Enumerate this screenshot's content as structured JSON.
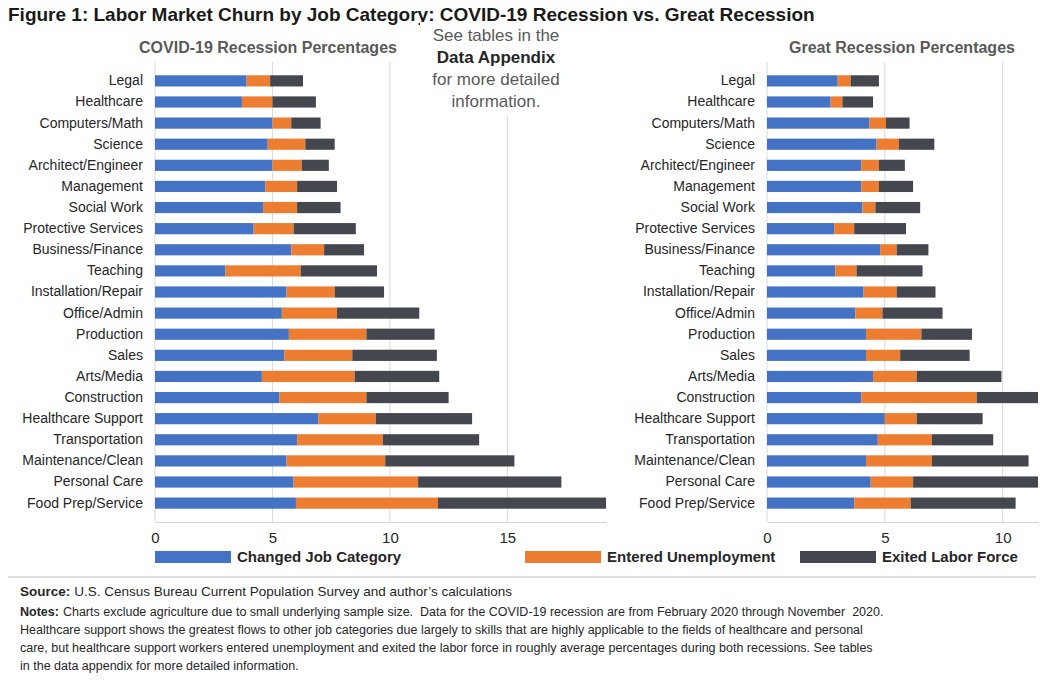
{
  "title": "Figure 1: Labor Market Churn by Job Category: COVID-19 Recession vs. Great Recession",
  "annotation": [
    "See tables in the",
    "Data Appendix",
    "for more detailed",
    "information."
  ],
  "source": {
    "label": "Source:",
    "text": "U.S. Census Bureau Current Population Survey and author’s calculations"
  },
  "notes": {
    "label": "Notes:",
    "lines": [
      "Charts exclude agriculture due to small underlying sample size.  Data for the COVID-19 recession are from February 2020 through November  2020.",
      "Healthcare support shows the greatest flows to other job categories due largely to skills that are highly applicable to the fields of healthcare and personal",
      "care, but healthcare support workers entered unemployment and exited the labor force in roughly average percentages during both recessions. See tables",
      "in the data appendix for more detailed information."
    ]
  },
  "chart_data": [
    {
      "type": "bar",
      "orientation": "horizontal",
      "stacked": true,
      "grid": true,
      "legend": "bottom",
      "title": "COVID-19 Recession Percentages",
      "categories": [
        "Legal",
        "Healthcare",
        "Computers/Math",
        "Science",
        "Architect/Engineer",
        "Management",
        "Social Work",
        "Protective Services",
        "Business/Finance",
        "Teaching",
        "Installation/Repair",
        "Office/Admin",
        "Production",
        "Sales",
        "Arts/Media",
        "Construction",
        "Healthcare Support",
        "Transportation",
        "Maintenance/Clean",
        "Personal Care",
        "Food Prep/Service"
      ],
      "series": [
        {
          "name": "Changed Job Category",
          "color": "#4472c4",
          "values": [
            3.9,
            3.7,
            5.0,
            4.8,
            5.0,
            4.7,
            4.6,
            4.2,
            5.8,
            3.0,
            5.6,
            5.4,
            5.7,
            5.5,
            4.55,
            5.3,
            6.95,
            6.05,
            5.6,
            5.9,
            6.0
          ]
        },
        {
          "name": "Entered Unemployment",
          "color": "#ed7d31",
          "values": [
            1.0,
            1.3,
            0.8,
            1.6,
            1.25,
            1.35,
            1.45,
            1.7,
            1.4,
            3.2,
            2.05,
            2.35,
            3.3,
            2.9,
            3.95,
            3.7,
            2.45,
            3.65,
            4.2,
            5.3,
            6.05
          ]
        },
        {
          "name": "Exited Labor Force",
          "color": "#44474d",
          "values": [
            1.4,
            1.85,
            1.25,
            1.25,
            1.15,
            1.7,
            1.85,
            2.65,
            1.7,
            3.25,
            2.1,
            3.5,
            2.9,
            3.6,
            3.6,
            3.5,
            4.1,
            4.1,
            5.5,
            6.1,
            7.15
          ]
        }
      ],
      "xlim": [
        0,
        19.2
      ],
      "xticks": [
        0,
        5,
        10,
        15
      ]
    },
    {
      "type": "bar",
      "orientation": "horizontal",
      "stacked": true,
      "grid": true,
      "title": "Great Recession Percentages",
      "categories": [
        "Legal",
        "Healthcare",
        "Computers/Math",
        "Science",
        "Architect/Engineer",
        "Management",
        "Social Work",
        "Protective Services",
        "Business/Finance",
        "Teaching",
        "Installation/Repair",
        "Office/Admin",
        "Production",
        "Sales",
        "Arts/Media",
        "Construction",
        "Healthcare Support",
        "Transportation",
        "Maintenance/Clean",
        "Personal Care",
        "Food Prep/Service"
      ],
      "series": [
        {
          "name": "Changed Job Category",
          "color": "#4472c4",
          "values": [
            3.0,
            2.7,
            4.35,
            4.65,
            4.0,
            4.0,
            4.05,
            2.85,
            4.8,
            2.9,
            4.1,
            3.75,
            4.2,
            4.2,
            4.5,
            4.0,
            5.0,
            4.7,
            4.2,
            4.4,
            3.7
          ]
        },
        {
          "name": "Entered Unemployment",
          "color": "#ed7d31",
          "values": [
            0.55,
            0.5,
            0.7,
            0.95,
            0.75,
            0.75,
            0.55,
            0.85,
            0.7,
            0.9,
            1.4,
            1.15,
            2.35,
            1.45,
            1.85,
            4.9,
            1.35,
            2.3,
            2.8,
            1.8,
            2.4
          ]
        },
        {
          "name": "Exited Labor Force",
          "color": "#44474d",
          "values": [
            1.2,
            1.3,
            1.0,
            1.5,
            1.1,
            1.45,
            1.9,
            2.2,
            1.35,
            2.8,
            1.65,
            2.55,
            2.15,
            2.95,
            3.6,
            2.6,
            2.8,
            2.6,
            4.1,
            5.3,
            4.45
          ]
        }
      ],
      "xlim": [
        0,
        11.5
      ],
      "xticks": [
        0,
        5,
        10
      ]
    }
  ]
}
